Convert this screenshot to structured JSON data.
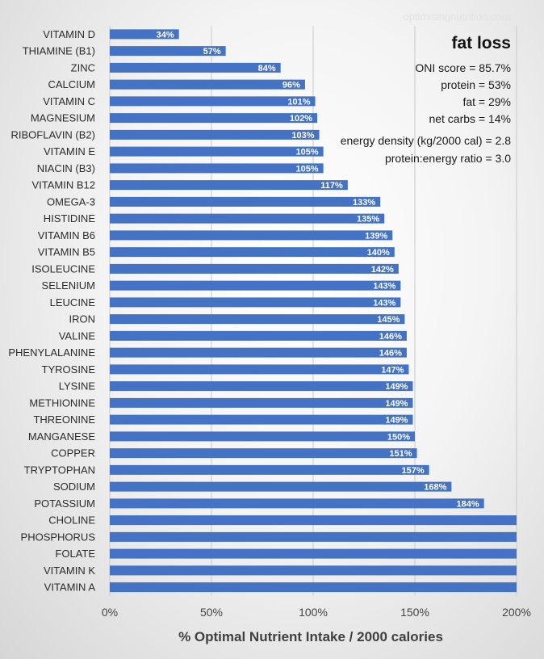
{
  "chart_data": {
    "type": "bar",
    "orientation": "horizontal",
    "title": "fat loss",
    "watermark": "optimisingnutrition.com",
    "xlabel": "% Optimal Nutrient Intake / 2000 calories",
    "ylabel": "",
    "xlim": [
      0,
      200
    ],
    "x_ticks": [
      0,
      50,
      100,
      150,
      200
    ],
    "x_tick_labels": [
      "0%",
      "50%",
      "100%",
      "150%",
      "200%"
    ],
    "grid": "vertical",
    "bar_color": "#4472C4",
    "categories": [
      "VITAMIN D",
      "THIAMINE (B1)",
      "ZINC",
      "CALCIUM",
      "VITAMIN C",
      "MAGNESIUM",
      "RIBOFLAVIN (B2)",
      "VITAMIN E",
      "NIACIN (B3)",
      "VITAMIN B12",
      "OMEGA-3",
      "HISTIDINE",
      "VITAMIN B6",
      "VITAMIN B5",
      "ISOLEUCINE",
      "SELENIUM",
      "LEUCINE",
      "IRON",
      "VALINE",
      "PHENYLALANINE",
      "TYROSINE",
      "LYSINE",
      "METHIONINE",
      "THREONINE",
      "MANGANESE",
      "COPPER",
      "TRYPTOPHAN",
      "SODIUM",
      "POTASSIUM",
      "CHOLINE",
      "PHOSPHORUS",
      "FOLATE",
      "VITAMIN K",
      "VITAMIN A"
    ],
    "values": [
      34,
      57,
      84,
      96,
      101,
      102,
      103,
      105,
      105,
      117,
      133,
      135,
      139,
      140,
      142,
      143,
      143,
      145,
      146,
      146,
      147,
      149,
      149,
      149,
      150,
      151,
      157,
      168,
      184,
      200,
      200,
      200,
      200,
      200
    ],
    "data_labels": [
      "34%",
      "57%",
      "84%",
      "96%",
      "101%",
      "102%",
      "103%",
      "105%",
      "105%",
      "117%",
      "133%",
      "135%",
      "139%",
      "140%",
      "142%",
      "143%",
      "143%",
      "145%",
      "146%",
      "146%",
      "147%",
      "149%",
      "149%",
      "149%",
      "150%",
      "151%",
      "157%",
      "168%",
      "184%",
      "",
      "",
      "",
      "",
      ""
    ],
    "annotations": [
      "ONI score = 85.7%",
      "protein = 53%",
      "fat = 29%",
      "net carbs = 14%",
      "energy density (kg/2000 cal)  = 2.8",
      "protein:energy ratio = 3.0"
    ]
  }
}
